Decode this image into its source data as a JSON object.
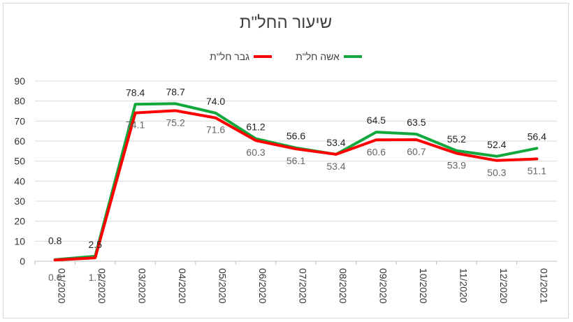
{
  "chart_data": {
    "type": "line",
    "title": "שיעור החל\"ת",
    "categories": [
      "01/2020",
      "02/2020",
      "03/2020",
      "04/2020",
      "05/2020",
      "06/2020",
      "07/2020",
      "08/2020",
      "09/2020",
      "10/2020",
      "11/2020",
      "12/2020",
      "01/2021"
    ],
    "series": [
      {
        "name": "אשה חל\"ת",
        "color": "#13a83e",
        "values": [
          0.8,
          2.5,
          78.4,
          78.7,
          74.0,
          61.2,
          56.6,
          53.4,
          64.5,
          63.5,
          55.2,
          52.4,
          56.4
        ]
      },
      {
        "name": "גבר חל\"ת",
        "color": "#ff0000",
        "values": [
          0.6,
          1.7,
          74.1,
          75.2,
          71.6,
          60.3,
          56.1,
          53.4,
          60.6,
          60.7,
          53.9,
          50.3,
          51.1
        ]
      }
    ],
    "yticks": [
      0,
      10,
      20,
      30,
      40,
      50,
      60,
      70,
      80,
      90
    ],
    "ylim": [
      0,
      90
    ],
    "grid": true,
    "legend_position": "top"
  }
}
